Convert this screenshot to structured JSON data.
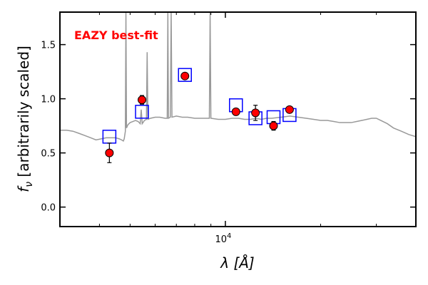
{
  "chart_data": {
    "type": "scatter",
    "annotation": "EAZY best-fit",
    "annotation_color": "#ff0000",
    "ylabel": "f",
    "ylabel_sub": "ν",
    "ylabel_rest": " [arbitrarily scaled]",
    "xlabel": "λ [Å]",
    "x_scale": "log",
    "xlim": [
      3000,
      40000
    ],
    "ylim": [
      -0.18,
      1.8
    ],
    "y_ticks": [
      {
        "value": 0.0,
        "label": "0.0"
      },
      {
        "value": 0.5,
        "label": "0.5"
      },
      {
        "value": 1.0,
        "label": "1.0"
      },
      {
        "value": 1.5,
        "label": "1.5"
      }
    ],
    "x_major_ticks": [
      {
        "value": 10000,
        "label": "10",
        "sup": "4"
      }
    ],
    "x_minor_ticks": [
      4000,
      5000,
      6000,
      7000,
      8000,
      9000,
      20000,
      30000
    ],
    "grid": false,
    "colors": {
      "observed": "#ff0000",
      "observed_edge": "#000000",
      "model_photometry": "#0000ff",
      "template": "#999999"
    },
    "observed": [
      {
        "x": 4300,
        "y": 0.5,
        "err": 0.09
      },
      {
        "x": 5450,
        "y": 0.99,
        "err": 0.04
      },
      {
        "x": 7450,
        "y": 1.21,
        "err": 0.03
      },
      {
        "x": 10800,
        "y": 0.88,
        "err": 0.03
      },
      {
        "x": 12450,
        "y": 0.87,
        "err": 0.07
      },
      {
        "x": 14200,
        "y": 0.75,
        "err": 0.04
      },
      {
        "x": 15950,
        "y": 0.9,
        "err": 0.02
      }
    ],
    "model_photometry": [
      {
        "x": 4300,
        "y": 0.65
      },
      {
        "x": 5450,
        "y": 0.88
      },
      {
        "x": 7450,
        "y": 1.22
      },
      {
        "x": 10800,
        "y": 0.94
      },
      {
        "x": 12450,
        "y": 0.82
      },
      {
        "x": 14200,
        "y": 0.83
      },
      {
        "x": 15950,
        "y": 0.85
      }
    ],
    "template": [
      {
        "x": 3000,
        "y": 0.71
      },
      {
        "x": 3150,
        "y": 0.71
      },
      {
        "x": 3300,
        "y": 0.7
      },
      {
        "x": 3450,
        "y": 0.68
      },
      {
        "x": 3600,
        "y": 0.66
      },
      {
        "x": 3750,
        "y": 0.64
      },
      {
        "x": 3900,
        "y": 0.62
      },
      {
        "x": 4050,
        "y": 0.63
      },
      {
        "x": 4200,
        "y": 0.64
      },
      {
        "x": 4350,
        "y": 0.64
      },
      {
        "x": 4500,
        "y": 0.64
      },
      {
        "x": 4620,
        "y": 0.63
      },
      {
        "x": 4700,
        "y": 0.62
      },
      {
        "x": 4760,
        "y": 0.61
      },
      {
        "x": 4790,
        "y": 0.63
      },
      {
        "x": 4830,
        "y": 0.7
      },
      {
        "x": 4850,
        "y": 1.8
      },
      {
        "x": 4870,
        "y": 0.73
      },
      {
        "x": 4920,
        "y": 0.76
      },
      {
        "x": 5000,
        "y": 0.78
      },
      {
        "x": 5100,
        "y": 0.79
      },
      {
        "x": 5200,
        "y": 0.8
      },
      {
        "x": 5300,
        "y": 0.79
      },
      {
        "x": 5380,
        "y": 0.77
      },
      {
        "x": 5420,
        "y": 0.9
      },
      {
        "x": 5460,
        "y": 0.77
      },
      {
        "x": 5550,
        "y": 0.8
      },
      {
        "x": 5630,
        "y": 0.81
      },
      {
        "x": 5660,
        "y": 1.43
      },
      {
        "x": 5690,
        "y": 0.81
      },
      {
        "x": 5800,
        "y": 0.82
      },
      {
        "x": 6000,
        "y": 0.83
      },
      {
        "x": 6200,
        "y": 0.83
      },
      {
        "x": 6450,
        "y": 0.82
      },
      {
        "x": 6550,
        "y": 0.82
      },
      {
        "x": 6580,
        "y": 1.8
      },
      {
        "x": 6610,
        "y": 0.82
      },
      {
        "x": 6700,
        "y": 0.83
      },
      {
        "x": 6740,
        "y": 1.8
      },
      {
        "x": 6780,
        "y": 0.83
      },
      {
        "x": 7000,
        "y": 0.84
      },
      {
        "x": 7300,
        "y": 0.83
      },
      {
        "x": 7600,
        "y": 0.83
      },
      {
        "x": 8000,
        "y": 0.82
      },
      {
        "x": 8500,
        "y": 0.82
      },
      {
        "x": 8900,
        "y": 0.82
      },
      {
        "x": 8950,
        "y": 1.8
      },
      {
        "x": 9000,
        "y": 0.82
      },
      {
        "x": 9500,
        "y": 0.81
      },
      {
        "x": 10000,
        "y": 0.81
      },
      {
        "x": 10500,
        "y": 0.82
      },
      {
        "x": 11000,
        "y": 0.82
      },
      {
        "x": 11500,
        "y": 0.81
      },
      {
        "x": 12000,
        "y": 0.81
      },
      {
        "x": 12500,
        "y": 0.82
      },
      {
        "x": 13000,
        "y": 0.81
      },
      {
        "x": 13500,
        "y": 0.82
      },
      {
        "x": 14000,
        "y": 0.82
      },
      {
        "x": 15000,
        "y": 0.83
      },
      {
        "x": 16000,
        "y": 0.84
      },
      {
        "x": 17000,
        "y": 0.83
      },
      {
        "x": 18000,
        "y": 0.82
      },
      {
        "x": 19000,
        "y": 0.81
      },
      {
        "x": 20000,
        "y": 0.8
      },
      {
        "x": 21000,
        "y": 0.8
      },
      {
        "x": 22000,
        "y": 0.79
      },
      {
        "x": 23000,
        "y": 0.78
      },
      {
        "x": 24000,
        "y": 0.78
      },
      {
        "x": 25000,
        "y": 0.78
      },
      {
        "x": 26000,
        "y": 0.79
      },
      {
        "x": 27000,
        "y": 0.8
      },
      {
        "x": 28000,
        "y": 0.81
      },
      {
        "x": 29000,
        "y": 0.82
      },
      {
        "x": 30000,
        "y": 0.82
      },
      {
        "x": 31000,
        "y": 0.8
      },
      {
        "x": 32500,
        "y": 0.77
      },
      {
        "x": 34000,
        "y": 0.73
      },
      {
        "x": 36000,
        "y": 0.7
      },
      {
        "x": 38000,
        "y": 0.67
      },
      {
        "x": 40000,
        "y": 0.65
      }
    ]
  }
}
